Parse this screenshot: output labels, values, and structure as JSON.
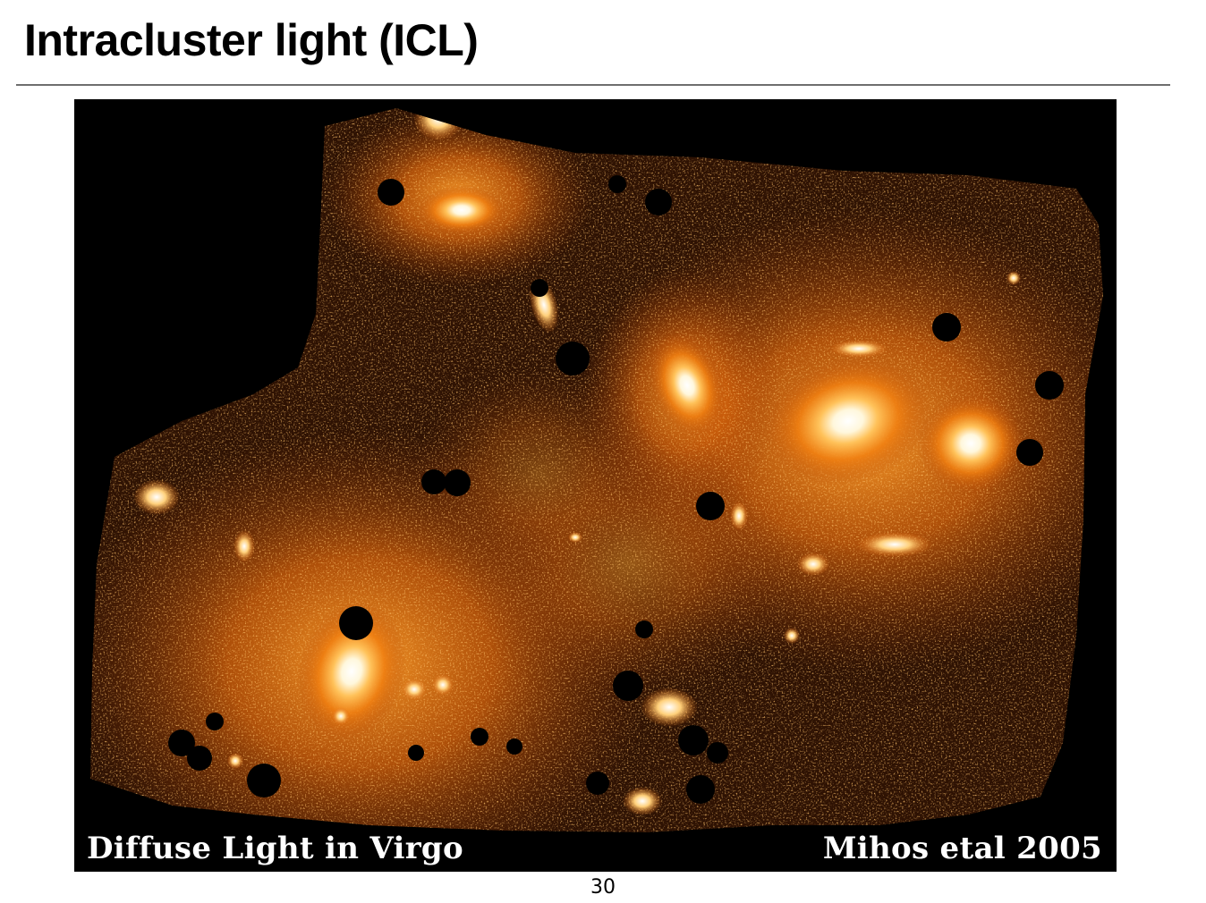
{
  "slide": {
    "title": "Intracluster light (ICL)",
    "page_number": "30"
  },
  "image": {
    "subject": "Virgo cluster diffuse light deep image (orange false-color)",
    "caption_left": "Diffuse Light in Virgo",
    "caption_right": "Mihos etal  2005",
    "colors": {
      "background": "#000000",
      "glow_core": "#fffbe8",
      "glow_mid": "#ff9a1a",
      "glow_outer": "#c2520a",
      "noise_field": "#3a1604"
    }
  }
}
